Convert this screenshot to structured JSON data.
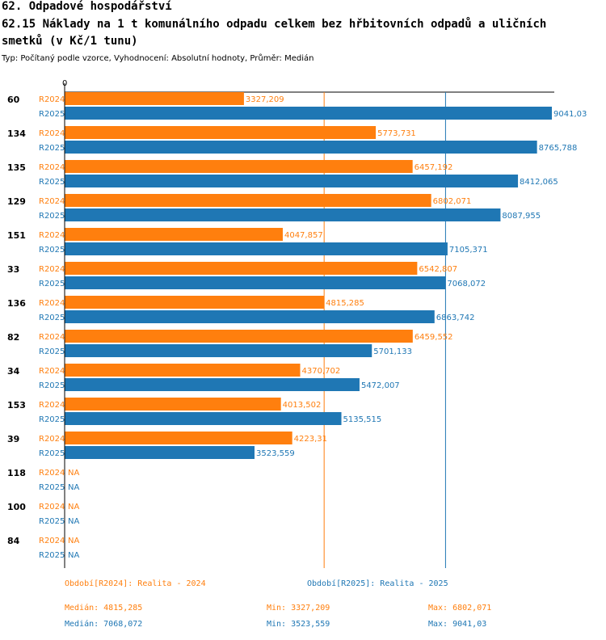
{
  "header": {
    "chapter": "62. Odpadové hospodářství",
    "title_line1": "62.15 Náklady na 1 t komunálního odpadu celkem bez hřbitovních odpadů a uličních",
    "title_line2": "smetků (v Kč/1 tunu)",
    "subtitle": "Typ: Počítaný podle vzorce, Vyhodnocení: Absolutní hodnoty, Průměr: Medián"
  },
  "colors": {
    "r2024": "#ff7f0e",
    "r2025": "#1f77b4",
    "axis": "#000000"
  },
  "chart_data": {
    "type": "bar",
    "orientation": "horizontal",
    "axis_zero_label": "0",
    "xlim": [
      0,
      9041.03
    ],
    "categories": [
      "60",
      "134",
      "135",
      "129",
      "151",
      "33",
      "136",
      "82",
      "34",
      "153",
      "39",
      "118",
      "100",
      "84"
    ],
    "series": [
      {
        "name": "R2024",
        "values": [
          3327.209,
          5773.731,
          6457.192,
          6802.071,
          4047.857,
          6542.807,
          4815.285,
          6459.552,
          4370.702,
          4013.502,
          4223.31,
          null,
          null,
          null
        ],
        "labels": [
          "3327,209",
          "5773,731",
          "6457,192",
          "6802,071",
          "4047,857",
          "6542,807",
          "4815,285",
          "6459,552",
          "4370,702",
          "4013,502",
          "4223,31",
          "NA",
          "NA",
          "NA"
        ]
      },
      {
        "name": "R2025",
        "values": [
          9041.03,
          8765.788,
          8412.065,
          8087.955,
          7105.371,
          7068.072,
          6863.742,
          5701.133,
          5472.007,
          5135.515,
          3523.559,
          null,
          null,
          null
        ],
        "labels": [
          "9041,03",
          "8765,788",
          "8412,065",
          "8087,955",
          "7105,371",
          "7068,072",
          "6863,742",
          "5701,133",
          "5472,007",
          "5135,515",
          "3523,559",
          "NA",
          "NA",
          "NA"
        ]
      }
    ],
    "reference_lines": [
      {
        "series": "R2024",
        "stat": "median",
        "value": 4815.285
      },
      {
        "series": "R2025",
        "stat": "median",
        "value": 7068.072
      }
    ]
  },
  "footer": {
    "legend24": "Období[R2024]: Realita - 2024",
    "legend25": "Období[R2025]: Realita - 2025",
    "median24": "Medián: 4815,285",
    "min24": "Min: 3327,209",
    "max24": "Max: 6802,071",
    "median25": "Medián: 7068,072",
    "min25": "Min: 3523,559",
    "max25": "Max: 9041,03"
  }
}
